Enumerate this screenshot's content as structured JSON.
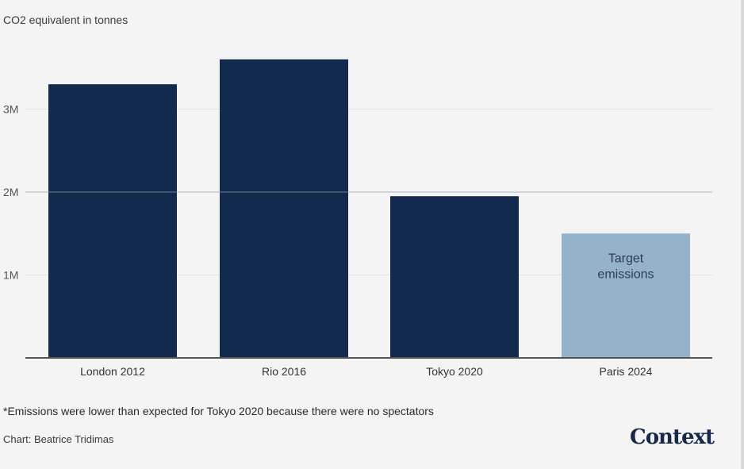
{
  "chart_data": {
    "type": "bar",
    "unit_label": "CO2 equivalent in tonnes",
    "categories": [
      "London 2012",
      "Rio 2016",
      "Tokyo 2020",
      "Paris 2024"
    ],
    "values": [
      3300000,
      3600000,
      1950000,
      1500000
    ],
    "colors": [
      "#112a4d",
      "#112a4d",
      "#112a4d",
      "#95b2cb"
    ],
    "bar_annotations": [
      "",
      "",
      "",
      "Target emissions"
    ],
    "y_ticks": [
      {
        "value": 1000000,
        "label": "1M"
      },
      {
        "value": 2000000,
        "label": "2M"
      },
      {
        "value": 3000000,
        "label": "3M"
      }
    ],
    "ylim": [
      0,
      4000000
    ],
    "grid": true
  },
  "footnote": "*Emissions were lower than expected for Tokyo 2020 because there were no spectators",
  "credit": "Chart: Beatrice Tridimas",
  "brand": "Context"
}
